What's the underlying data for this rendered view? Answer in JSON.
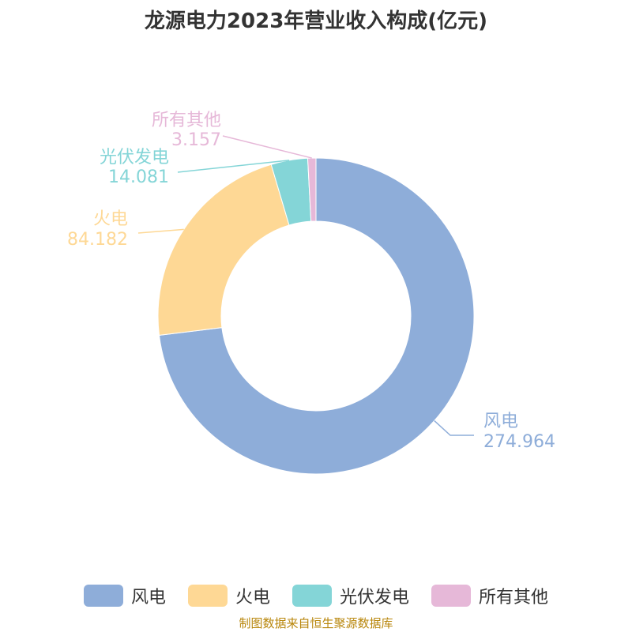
{
  "chart_data": {
    "type": "pie",
    "title": "龙源电力2023年营业收入构成(亿元)",
    "categories": [
      "风电",
      "火电",
      "光伏发电",
      "所有其他"
    ],
    "values": [
      274.964,
      84.182,
      14.081,
      3.157
    ],
    "value_labels": [
      "274.964",
      "84.182",
      "14.081",
      "3.157"
    ],
    "colors": [
      "#8eadd9",
      "#fed895",
      "#84d5d7",
      "#e6b8d8"
    ],
    "donut": true,
    "legend_position": "bottom"
  },
  "footer": {
    "source": "制图数据来自恒生聚源数据库"
  }
}
